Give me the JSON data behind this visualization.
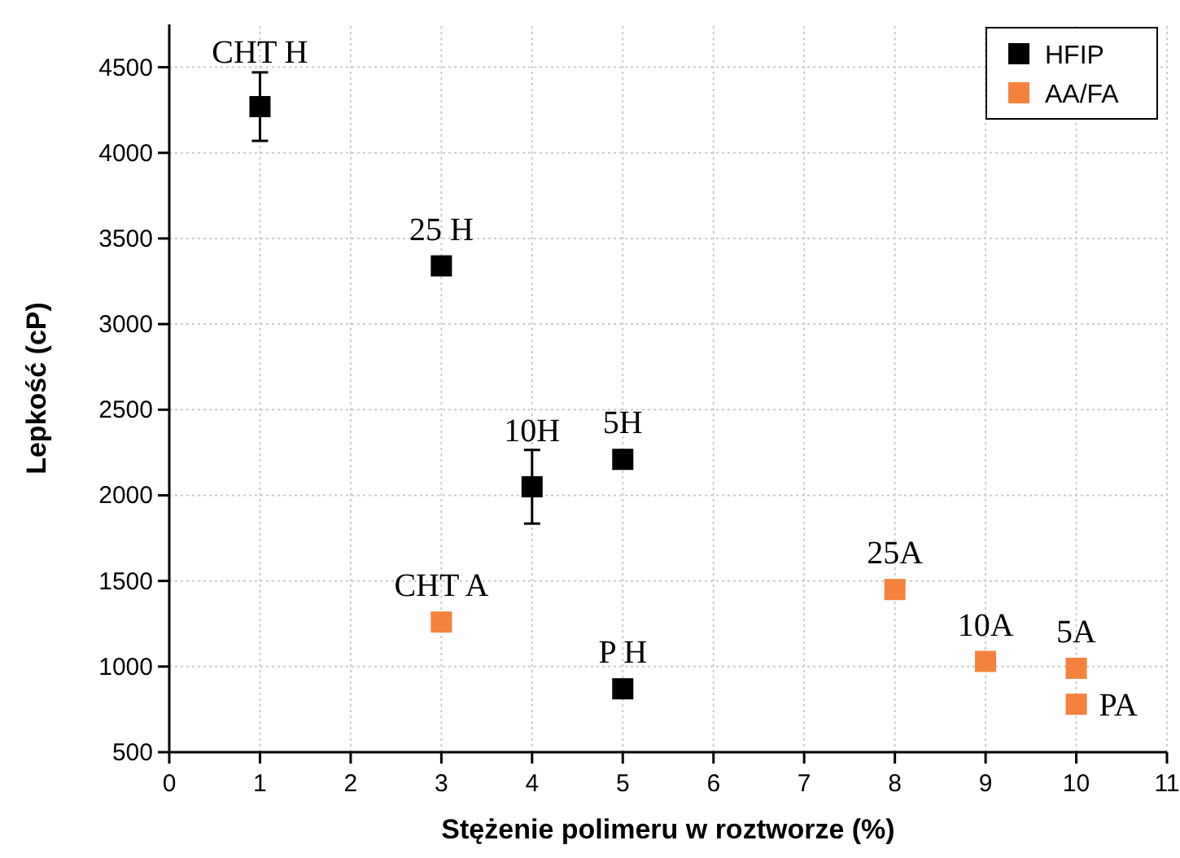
{
  "chart_data": {
    "type": "scatter",
    "xlabel": "Stężenie polimeru w roztworze (%)",
    "ylabel": "Lepkość (cP)",
    "xlim": [
      0,
      11
    ],
    "xticks": [
      0,
      1,
      2,
      3,
      4,
      5,
      6,
      7,
      8,
      9,
      10,
      11
    ],
    "ylim": [
      500,
      4750
    ],
    "yticks": [
      500,
      1000,
      1500,
      2000,
      2500,
      3000,
      3500,
      4000,
      4500
    ],
    "grid": true,
    "legend": "top right",
    "marker": "square",
    "series": [
      {
        "name": "HFIP",
        "color": "#000000",
        "x": [
          1,
          3,
          4,
          5,
          5
        ],
        "values": [
          4270,
          3340,
          2050,
          2210,
          870
        ],
        "errors": [
          200,
          null,
          215,
          null,
          null
        ]
      },
      {
        "name": "AA/FA",
        "color": "#f4823c",
        "x": [
          3,
          8,
          9,
          10,
          10
        ],
        "values": [
          1260,
          1450,
          1030,
          990,
          780
        ]
      }
    ],
    "annotations": [
      {
        "text": "CHT H",
        "x": 1,
        "y": 4270
      },
      {
        "text": "25 H",
        "x": 3,
        "y": 3340
      },
      {
        "text": "10H",
        "x": 4,
        "y": 2050
      },
      {
        "text": "5H",
        "x": 5,
        "y": 2210
      },
      {
        "text": "P H",
        "x": 5,
        "y": 870
      },
      {
        "text": "CHT A",
        "x": 3,
        "y": 1260
      },
      {
        "text": "25A",
        "x": 8,
        "y": 1450
      },
      {
        "text": "10A",
        "x": 9,
        "y": 1030
      },
      {
        "text": "5A",
        "x": 10,
        "y": 990
      },
      {
        "text": "PA",
        "x": 10,
        "y": 780
      }
    ]
  }
}
